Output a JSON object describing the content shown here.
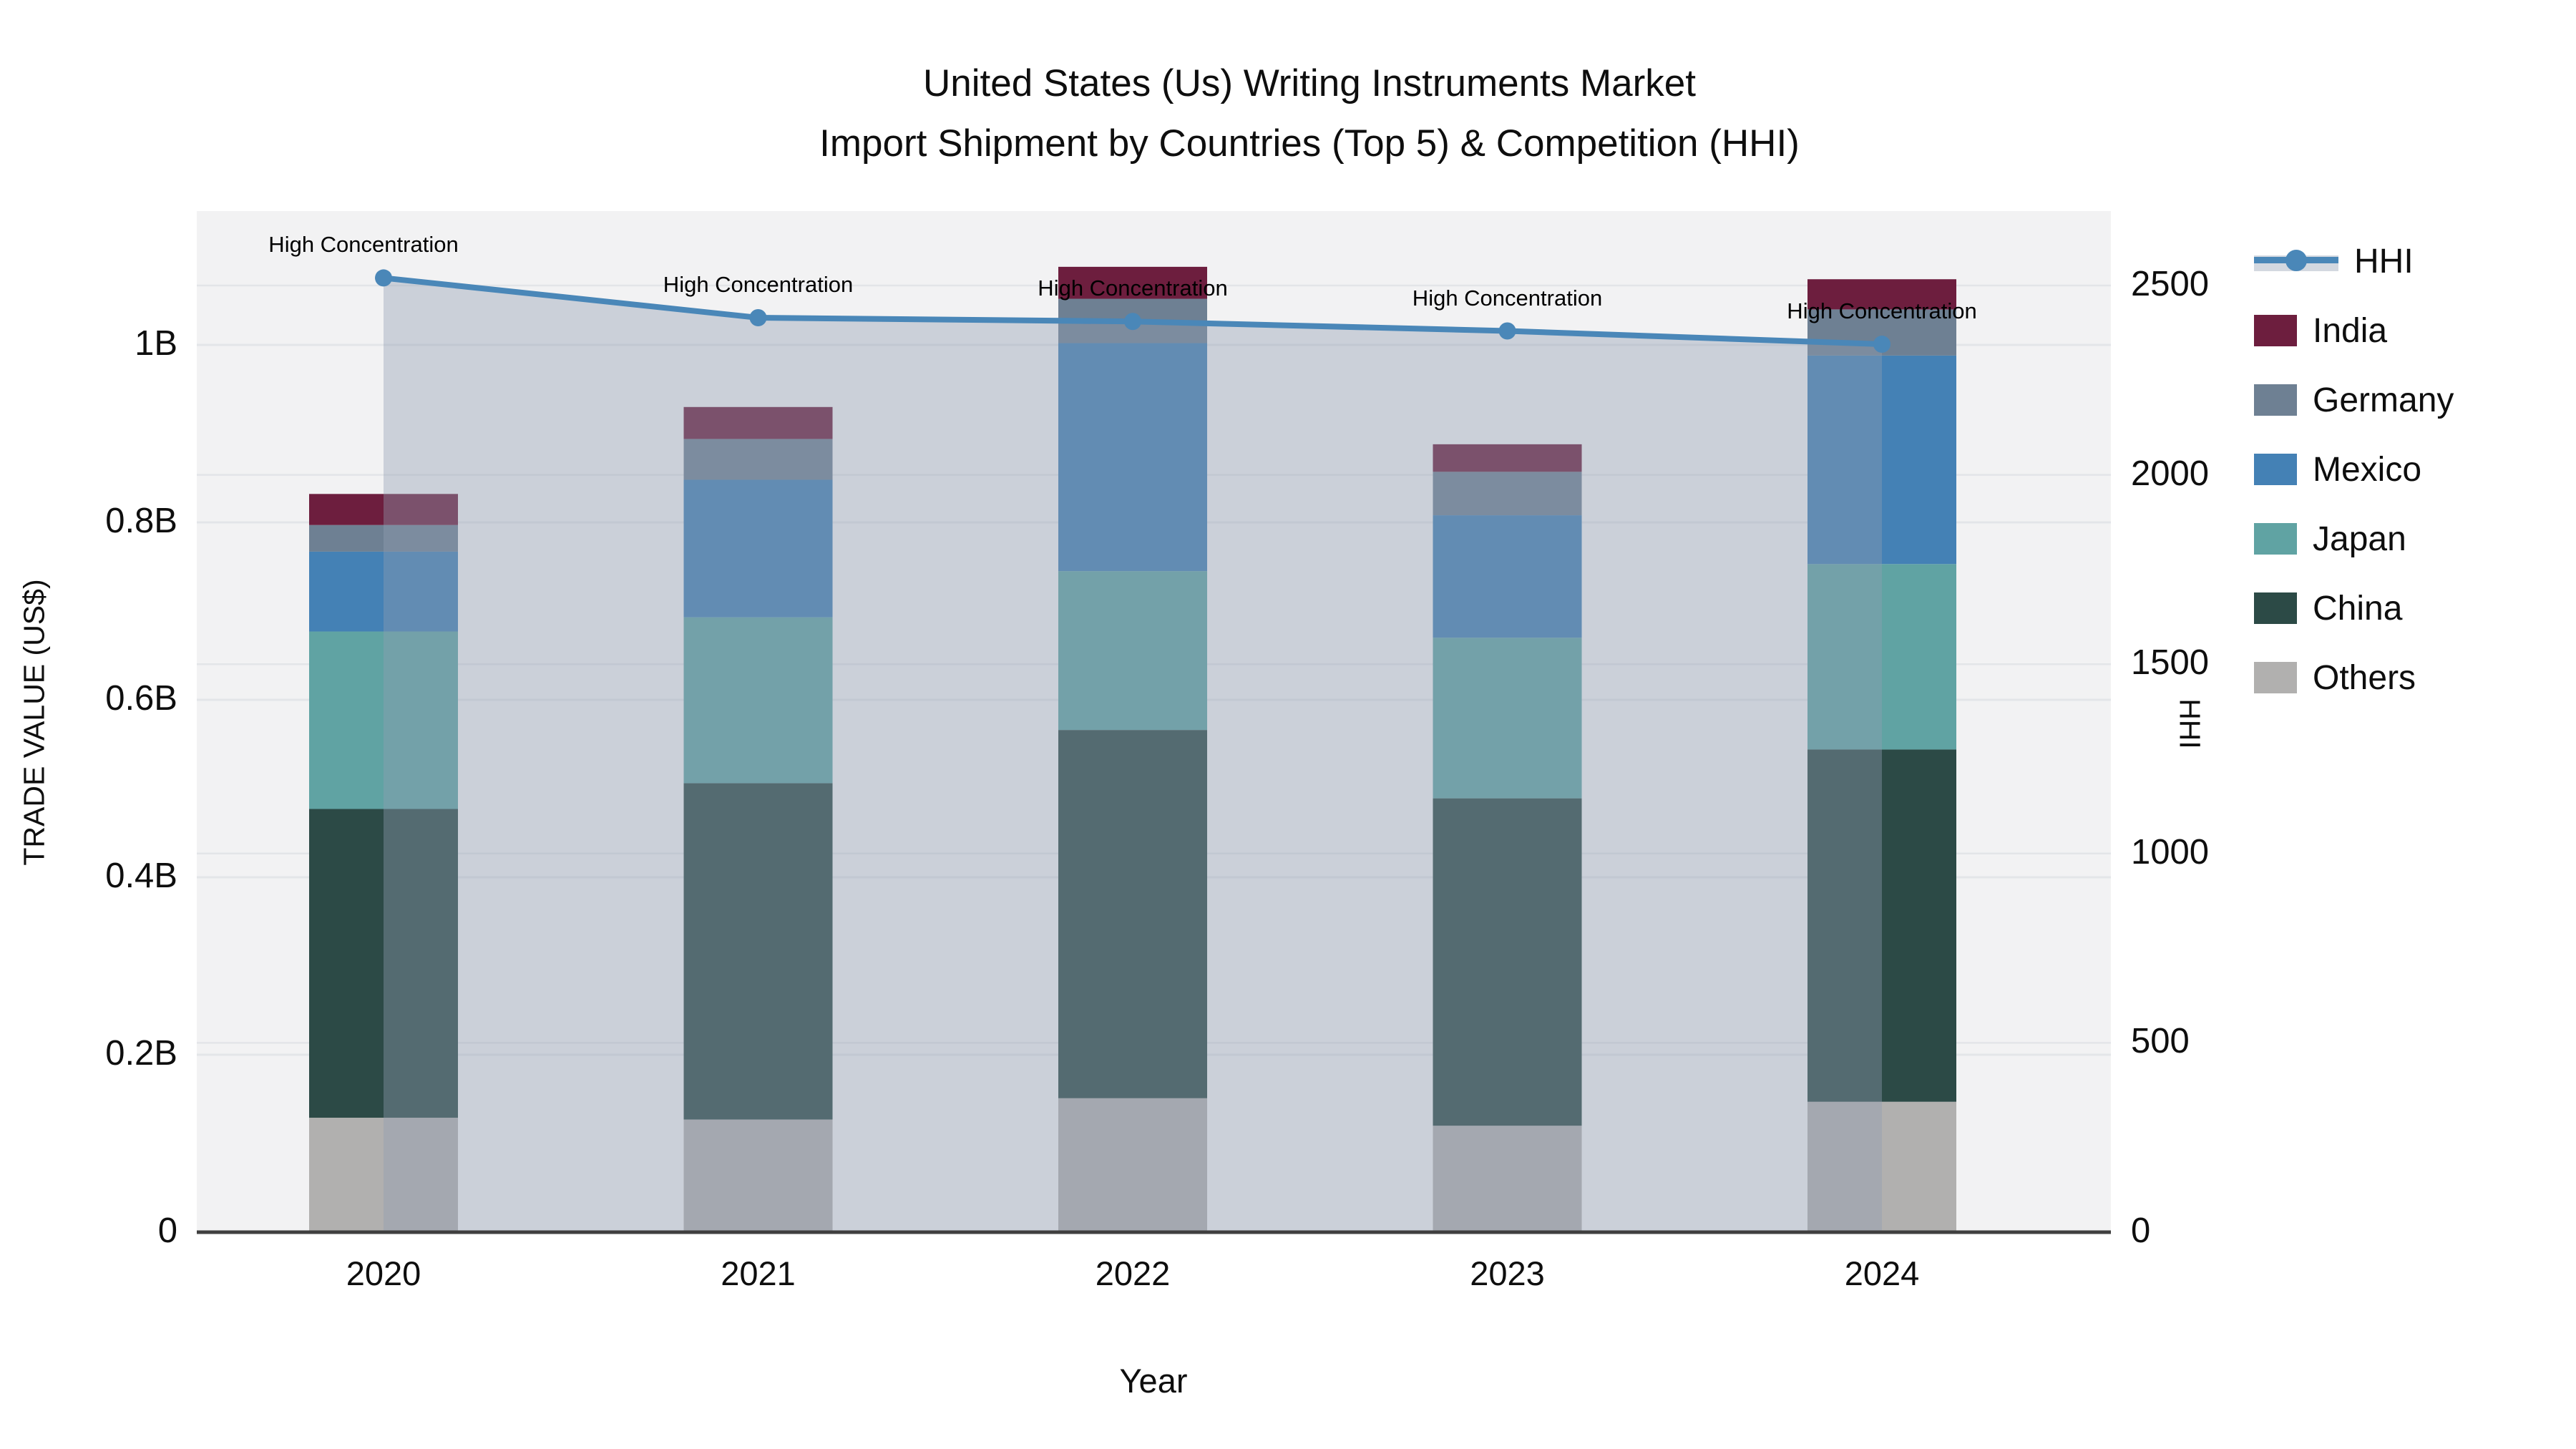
{
  "title": {
    "line1": "United States (Us) Writing Instruments Market",
    "line2": "Import Shipment by Countries (Top 5) & Competition (HHI)"
  },
  "axes": {
    "y_left": {
      "title": "TRADE VALUE (US$)",
      "ticks": [
        "0",
        "0.2B",
        "0.4B",
        "0.6B",
        "0.8B",
        "1B"
      ],
      "tick_values_b": [
        0,
        0.2,
        0.4,
        0.6,
        0.8,
        1.0
      ]
    },
    "y_right": {
      "title": "HHI",
      "ticks": [
        "0",
        "500",
        "1000",
        "1500",
        "2000",
        "2500"
      ],
      "tick_values": [
        0,
        500,
        1000,
        1500,
        2000,
        2500
      ]
    },
    "x": {
      "title": "Year"
    }
  },
  "chart_data": {
    "type": "bar+line",
    "stacked": true,
    "categories": [
      "2020",
      "2021",
      "2022",
      "2023",
      "2024"
    ],
    "unit": "billions US$",
    "series": [
      {
        "name": "Others",
        "color": "#b1b0af",
        "values": [
          0.129,
          0.127,
          0.151,
          0.12,
          0.147
        ]
      },
      {
        "name": "China",
        "color": "#2c4a46",
        "values": [
          0.348,
          0.379,
          0.415,
          0.369,
          0.397
        ]
      },
      {
        "name": "Japan",
        "color": "#60a3a3",
        "values": [
          0.2,
          0.187,
          0.179,
          0.181,
          0.209
        ]
      },
      {
        "name": "Mexico",
        "color": "#4481b5",
        "values": [
          0.09,
          0.155,
          0.257,
          0.138,
          0.235
        ]
      },
      {
        "name": "Germany",
        "color": "#6e8093",
        "values": [
          0.03,
          0.046,
          0.05,
          0.049,
          0.052
        ]
      },
      {
        "name": "India",
        "color": "#6d1e3e",
        "values": [
          0.035,
          0.036,
          0.036,
          0.031,
          0.034
        ]
      }
    ],
    "bar_totals_b": [
      0.832,
      0.93,
      1.088,
      0.888,
      1.074
    ],
    "line": {
      "name": "HHI",
      "values": [
        2520,
        2415,
        2405,
        2380,
        2345
      ],
      "color": "#4a87b8",
      "area_color": "rgba(145,158,178,0.40)",
      "axis": "right"
    },
    "annotations": [
      {
        "category": "2020",
        "text": "High Concentration"
      },
      {
        "category": "2021",
        "text": "High Concentration"
      },
      {
        "category": "2022",
        "text": "High Concentration"
      },
      {
        "category": "2023",
        "text": "High Concentration"
      },
      {
        "category": "2024",
        "text": "High Concentration"
      }
    ],
    "legend_order": [
      "HHI",
      "India",
      "Germany",
      "Mexico",
      "Japan",
      "China",
      "Others"
    ],
    "legend_position": "right",
    "grid": true,
    "ylim_left_b": [
      0,
      1.15
    ],
    "ylim_right": [
      0,
      2875
    ],
    "plot_bg": "#f2f2f3",
    "grid_color": "#e3e5e8",
    "axis_line_color": "#3f3f3f"
  }
}
